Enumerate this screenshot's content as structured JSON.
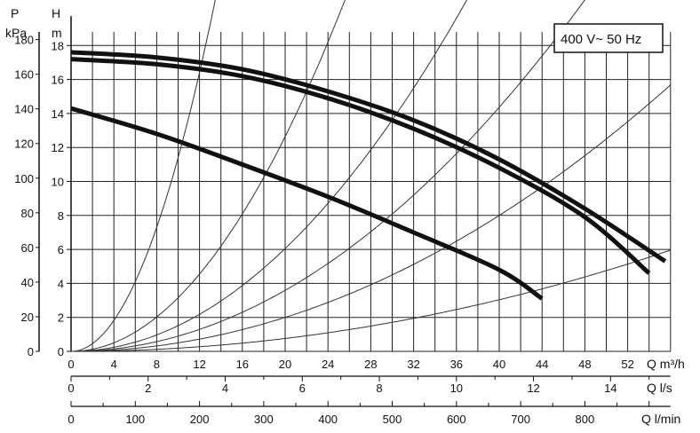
{
  "chart_data": {
    "type": "line",
    "badge": "400 V~ 50 Hz",
    "y_axis_left": {
      "label_top": "P",
      "label_unit": "kPa",
      "ticks": [
        0,
        20,
        40,
        60,
        80,
        100,
        120,
        140,
        160,
        180
      ]
    },
    "y_axis_head": {
      "label_top": "H",
      "label_unit": "m",
      "ticks": [
        0,
        2,
        4,
        6,
        8,
        10,
        12,
        14,
        16,
        18
      ],
      "range": [
        0,
        18.8
      ]
    },
    "x_axis_m3h": {
      "label": "Q m³/h",
      "ticks": [
        0,
        4,
        8,
        12,
        16,
        20,
        24,
        28,
        32,
        36,
        40,
        44,
        48,
        52
      ],
      "range": [
        0,
        56
      ]
    },
    "x_axis_ls": {
      "label": "Q l/s",
      "ticks": [
        0,
        2,
        4,
        6,
        8,
        10,
        12,
        14
      ]
    },
    "x_axis_lmin": {
      "label": "Q l/min",
      "ticks": [
        0,
        100,
        200,
        300,
        400,
        500,
        600,
        700,
        800
      ]
    },
    "pump_curves": [
      {
        "points": [
          [
            0,
            17.6
          ],
          [
            8,
            17.3
          ],
          [
            16,
            16.6
          ],
          [
            24,
            15.3
          ],
          [
            32,
            13.6
          ],
          [
            40,
            11.3
          ],
          [
            48,
            8.4
          ],
          [
            55.5,
            5.3
          ]
        ]
      },
      {
        "points": [
          [
            0,
            17.2
          ],
          [
            8,
            16.9
          ],
          [
            16,
            16.2
          ],
          [
            24,
            14.9
          ],
          [
            32,
            13.1
          ],
          [
            40,
            10.8
          ],
          [
            48,
            7.9
          ],
          [
            54,
            4.6
          ]
        ]
      },
      {
        "points": [
          [
            0,
            14.3
          ],
          [
            8,
            12.8
          ],
          [
            16,
            11.0
          ],
          [
            24,
            9.1
          ],
          [
            32,
            7.0
          ],
          [
            40,
            4.8
          ],
          [
            44,
            3.1
          ]
        ]
      }
    ],
    "system_curves": [
      {
        "k": 0.114
      },
      {
        "k": 0.0316
      },
      {
        "k": 0.01513
      },
      {
        "k": 0.00898
      },
      {
        "k": 0.005
      },
      {
        "k": 0.0019
      }
    ]
  }
}
